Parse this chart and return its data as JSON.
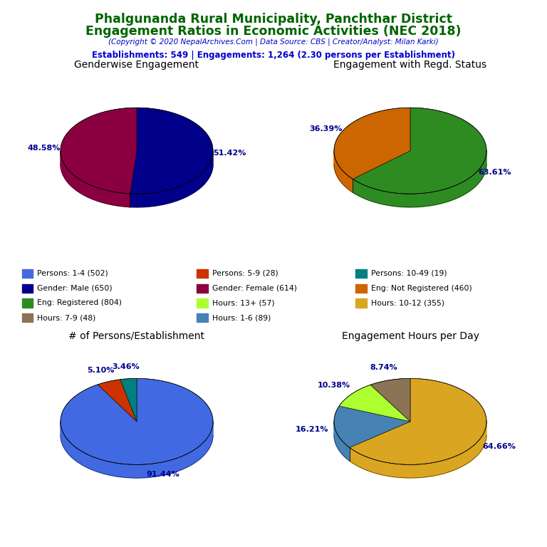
{
  "title_line1": "Phalgunanda Rural Municipality, Panchthar District",
  "title_line2": "Engagement Ratios in Economic Activities (NEC 2018)",
  "subtitle": "(Copyright © 2020 NepalArchives.Com | Data Source: CBS | Creator/Analyst: Milan Karki)",
  "stats_line": "Establishments: 549 | Engagements: 1,264 (2.30 persons per Establishment)",
  "title_color": "#006400",
  "subtitle_color": "#0000cd",
  "stats_color": "#0000cd",
  "pie1_title": "Genderwise Engagement",
  "pie1_values": [
    650,
    614
  ],
  "pie1_colors": [
    "#00008B",
    "#8B0040"
  ],
  "pie1_labels": [
    "51.42%",
    "48.58%"
  ],
  "pie2_title": "Engagement with Regd. Status",
  "pie2_values": [
    804,
    460
  ],
  "pie2_colors": [
    "#2E8B22",
    "#CC6600"
  ],
  "pie2_labels": [
    "63.61%",
    "36.39%"
  ],
  "pie3_title": "# of Persons/Establishment",
  "pie3_values": [
    502,
    28,
    19
  ],
  "pie3_colors": [
    "#4169E1",
    "#CC3300",
    "#008080"
  ],
  "pie3_labels": [
    "91.44%",
    "5.10%",
    "3.46%"
  ],
  "pie4_title": "Engagement Hours per Day",
  "pie4_values": [
    355,
    89,
    57,
    48
  ],
  "pie4_colors": [
    "#DAA520",
    "#4682B4",
    "#ADFF2F",
    "#8B7355"
  ],
  "pie4_labels": [
    "64.66%",
    "16.21%",
    "10.38%",
    "8.74%"
  ],
  "legend_items": [
    {
      "label": "Persons: 1-4 (502)",
      "color": "#4169E1"
    },
    {
      "label": "Persons: 5-9 (28)",
      "color": "#CC3300"
    },
    {
      "label": "Persons: 10-49 (19)",
      "color": "#008080"
    },
    {
      "label": "Gender: Male (650)",
      "color": "#00008B"
    },
    {
      "label": "Gender: Female (614)",
      "color": "#8B0040"
    },
    {
      "label": "Eng: Not Registered (460)",
      "color": "#CC6600"
    },
    {
      "label": "Eng: Registered (804)",
      "color": "#2E8B22"
    },
    {
      "label": "Hours: 13+ (57)",
      "color": "#ADFF2F"
    },
    {
      "label": "Hours: 10-12 (355)",
      "color": "#DAA520"
    },
    {
      "label": "Hours: 7-9 (48)",
      "color": "#8B7355"
    },
    {
      "label": "Hours: 1-6 (89)",
      "color": "#4682B4"
    }
  ]
}
